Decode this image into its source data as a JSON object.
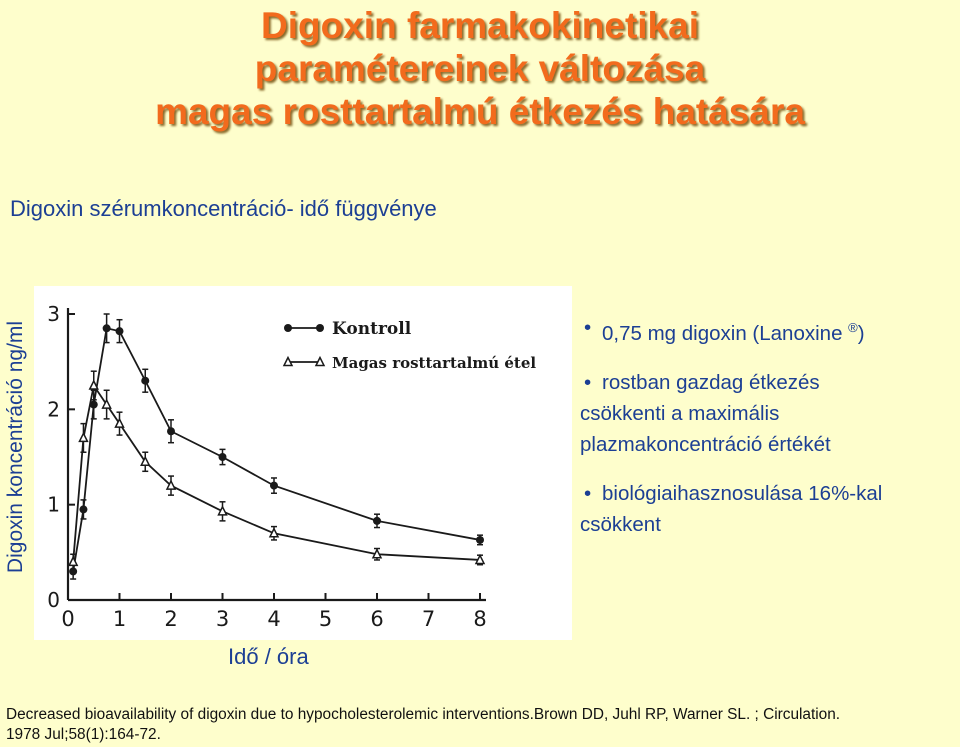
{
  "title": {
    "line1": "Digoxin farmakokinetikai",
    "line2": "paramétereinek változása",
    "line3": "magas rosttartalmú étkezés hatására"
  },
  "subtitle": "Digoxin szérumkoncentráció- idő függvénye",
  "bullets": {
    "b1": "0,75 mg digoxin (Lanoxine",
    "b1_reg": "®",
    "b1_end": ")",
    "b2_line1": "rostban gazdag étkezés",
    "b2_line2": "csökkenti a maximális",
    "b2_line3": "plazmakoncentráció értékét",
    "b3_line1": "biológiaihasznosulása 16%-kal",
    "b3_line2": "csökkent"
  },
  "citation": {
    "line1": "Decreased bioavailability of digoxin due to hypocholesterolemic interventions.Brown DD, Juhl RP, Warner SL. ; Circulation.",
    "line2": "1978 Jul;58(1):164-72."
  },
  "chart_data": {
    "type": "line",
    "title": "",
    "xlabel": "Idő / óra",
    "ylabel": "Digoxin koncentráció ng/ml",
    "xlim": [
      0,
      8
    ],
    "ylim": [
      0,
      3
    ],
    "xticks": [
      "0",
      "1",
      "2",
      "3",
      "4",
      "5",
      "6",
      "7",
      "8"
    ],
    "yticks": [
      "0",
      "1",
      "2",
      "3"
    ],
    "grid": false,
    "legend_position": "top-right",
    "series": [
      {
        "name": "Kontroll",
        "marker": "filled-circle",
        "x": [
          0.1,
          0.3,
          0.5,
          0.75,
          1,
          1.5,
          2,
          3,
          4,
          6,
          8
        ],
        "y": [
          0.3,
          0.95,
          2.05,
          2.85,
          2.82,
          2.3,
          1.77,
          1.5,
          1.2,
          0.83,
          0.63
        ],
        "err": [
          0.08,
          0.1,
          0.15,
          0.15,
          0.12,
          0.12,
          0.12,
          0.08,
          0.08,
          0.07,
          0.05
        ]
      },
      {
        "name": "Magas rosttartalmú étel",
        "marker": "open-triangle",
        "x": [
          0.1,
          0.3,
          0.5,
          0.75,
          1,
          1.5,
          2,
          3,
          4,
          6,
          8
        ],
        "y": [
          0.4,
          1.7,
          2.25,
          2.05,
          1.85,
          1.45,
          1.2,
          0.93,
          0.7,
          0.48,
          0.42
        ],
        "err": [
          0.08,
          0.15,
          0.15,
          0.15,
          0.12,
          0.1,
          0.1,
          0.1,
          0.07,
          0.06,
          0.05
        ]
      }
    ]
  }
}
